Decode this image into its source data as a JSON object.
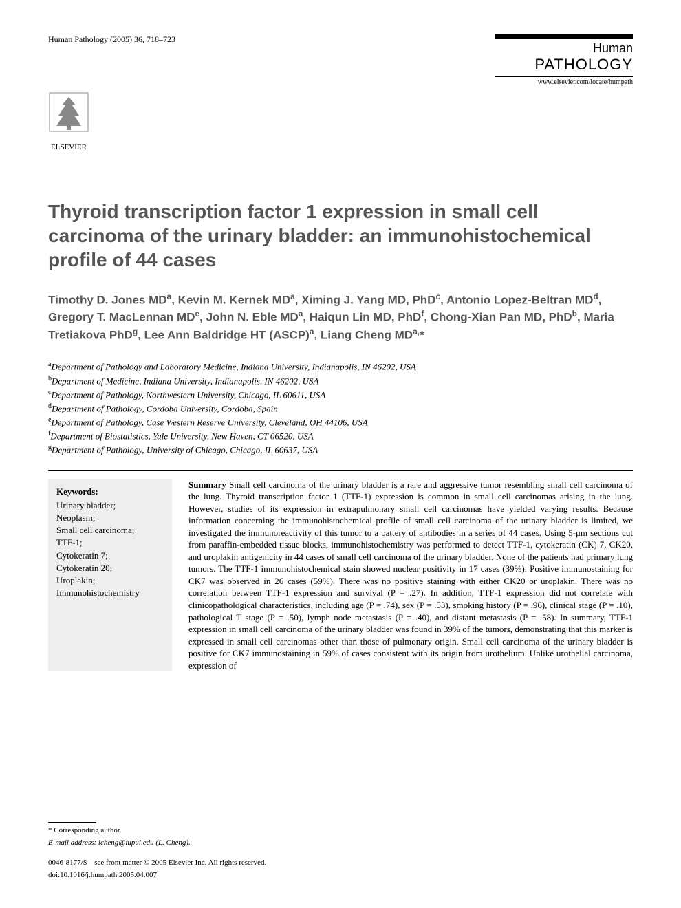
{
  "header": {
    "citation": "Human Pathology (2005) 36, 718–723",
    "journal_line1": "Human",
    "journal_line2": "PATHOLOGY",
    "journal_url": "www.elsevier.com/locate/humpath",
    "publisher_name": "ELSEVIER"
  },
  "title": "Thyroid transcription factor 1 expression in small cell carcinoma of the urinary bladder: an immunohistochemical profile of 44 cases",
  "authors_html": "Timothy D. Jones MD<sup>a</sup>, Kevin M. Kernek MD<sup>a</sup>, Ximing J. Yang MD, PhD<sup>c</sup>, Antonio Lopez-Beltran MD<sup>d</sup>, Gregory T. MacLennan MD<sup>e</sup>, John N. Eble MD<sup>a</sup>, Haiqun Lin MD, PhD<sup>f</sup>, Chong-Xian Pan MD, PhD<sup>b</sup>, Maria Tretiakova PhD<sup>g</sup>, Lee Ann Baldridge HT (ASCP)<sup>a</sup>, Liang Cheng MD<sup>a,</sup>*",
  "affiliations": [
    {
      "sup": "a",
      "text": "Department of Pathology and Laboratory Medicine, Indiana University, Indianapolis, IN 46202, USA"
    },
    {
      "sup": "b",
      "text": "Department of Medicine, Indiana University, Indianapolis, IN 46202, USA"
    },
    {
      "sup": "c",
      "text": "Department of Pathology, Northwestern University, Chicago, IL 60611, USA"
    },
    {
      "sup": "d",
      "text": "Department of Pathology, Cordoba University, Cordoba, Spain"
    },
    {
      "sup": "e",
      "text": "Department of Pathology, Case Western Reserve University, Cleveland, OH 44106, USA"
    },
    {
      "sup": "f",
      "text": "Department of Biostatistics, Yale University, New Haven, CT 06520, USA"
    },
    {
      "sup": "g",
      "text": "Department of Pathology, University of Chicago, Chicago, IL 60637, USA"
    }
  ],
  "keywords": {
    "title": "Keywords:",
    "items": [
      "Urinary bladder;",
      "Neoplasm;",
      "Small cell carcinoma;",
      "TTF-1;",
      "Cytokeratin 7;",
      "Cytokeratin 20;",
      "Uroplakin;",
      "Immunohistochemistry"
    ]
  },
  "summary": {
    "label": "Summary",
    "text": " Small cell carcinoma of the urinary bladder is a rare and aggressive tumor resembling small cell carcinoma of the lung. Thyroid transcription factor 1 (TTF-1) expression is common in small cell carcinomas arising in the lung. However, studies of its expression in extrapulmonary small cell carcinomas have yielded varying results. Because information concerning the immunohistochemical profile of small cell carcinoma of the urinary bladder is limited, we investigated the immunoreactivity of this tumor to a battery of antibodies in a series of 44 cases. Using 5-μm sections cut from paraffin-embedded tissue blocks, immunohistochemistry was performed to detect TTF-1, cytokeratin (CK) 7, CK20, and uroplakin antigenicity in 44 cases of small cell carcinoma of the urinary bladder. None of the patients had primary lung tumors. The TTF-1 immunohistochemical stain showed nuclear positivity in 17 cases (39%). Positive immunostaining for CK7 was observed in 26 cases (59%). There was no positive staining with either CK20 or uroplakin. There was no correlation between TTF-1 expression and survival (P = .27). In addition, TTF-1 expression did not correlate with clinicopathological characteristics, including age (P = .74), sex (P = .53), smoking history (P = .96), clinical stage (P = .10), pathological T stage (P = .50), lymph node metastasis (P = .40), and distant metastasis (P = .58). In summary, TTF-1 expression in small cell carcinoma of the urinary bladder was found in 39% of the tumors, demonstrating that this marker is expressed in small cell carcinomas other than those of pulmonary origin. Small cell carcinoma of the urinary bladder is positive for CK7 immunostaining in 59% of cases consistent with its origin from urothelium. Unlike urothelial carcinoma, expression of"
  },
  "footer": {
    "corresponding": "* Corresponding author.",
    "email_label": "E-mail address:",
    "email": "lcheng@iupui.edu (L. Cheng).",
    "copyright": "0046-8177/$ – see front matter © 2005 Elsevier Inc. All rights reserved.",
    "doi": "doi:10.1016/j.humpath.2005.04.007"
  },
  "colors": {
    "title_color": "#555555",
    "text_color": "#000000",
    "keywords_bg": "#eeeeee",
    "background": "#ffffff"
  },
  "typography": {
    "title_fontsize": 28,
    "authors_fontsize": 17,
    "affil_fontsize": 13,
    "body_fontsize": 13,
    "footer_fontsize": 11,
    "title_font": "Arial",
    "body_font": "Georgia/Times"
  }
}
